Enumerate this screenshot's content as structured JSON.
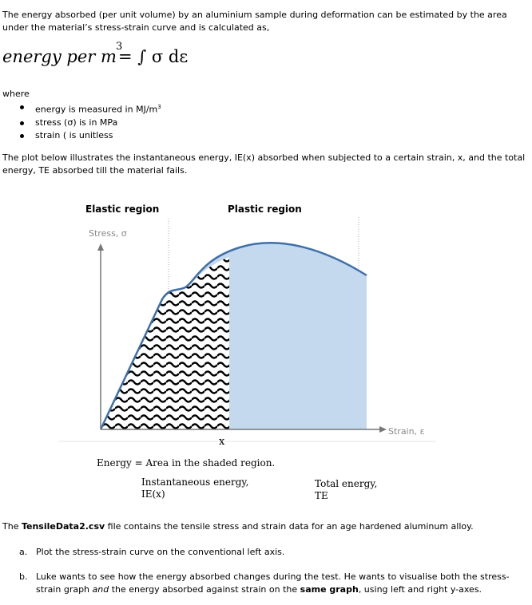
{
  "intro": "The energy absorbed (per unit volume) by an aluminium sample during deformation can be estimated by the area under the material’s stress-strain curve and is calculated as,",
  "formula": {
    "lhs": "energy per m",
    "exponent": "3",
    "rhs": "= ∫ σ dε"
  },
  "where_label": "where",
  "bullets": {
    "energy_prefix": "energy is measured in MJ/m",
    "energy_sup": "3",
    "stress": "stress (σ) is in MPa",
    "strain": "strain ( is unitless"
  },
  "plot_description": "The plot below illustrates the instantaneous energy, IE(x) absorbed when subjected to a certain strain, x, and the total energy, TE absorbed till the material fails.",
  "figure": {
    "elastic_region": "Elastic region",
    "plastic_region": "Plastic region",
    "y_axis_label": "Stress, σ",
    "x_axis_label": "Strain, ε",
    "x_marker": "x",
    "energy_equation": "Energy = Area in the shaded region.",
    "legend_ie_line1": "Instantaneous energy,",
    "legend_ie_line2": "IE(x)",
    "legend_te_line1": "Total energy,",
    "legend_te_line2": "TE",
    "fill_color": "#c5d9ee",
    "curve_color": "#3f6fa8"
  },
  "data_paragraph": {
    "prefix": "The ",
    "filename": "TensileData2.csv",
    "suffix": " file contains the tensile stress and strain data for an age hardened aluminum alloy."
  },
  "question_a": {
    "number": "a.",
    "text": "Plot the stress-strain curve on the conventional left axis."
  },
  "question_b": {
    "number": "b.",
    "p1": "Luke wants to see how the energy absorbed changes during the test. He wants to visualise both the stress-strain graph ",
    "and": "and",
    "p2": " the energy absorbed against strain on the ",
    "same": "same graph",
    "p3": ", using left and right y-axes."
  }
}
